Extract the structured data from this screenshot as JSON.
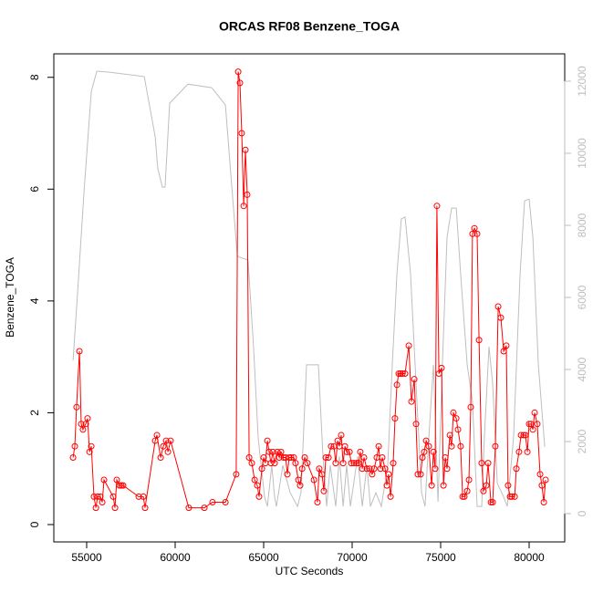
{
  "chart_data": {
    "type": "line",
    "title": "ORCAS RF08 Benzene_TOGA",
    "x_label": "UTC Seconds",
    "y_label": "Benzene_TOGA",
    "xlim": [
      53144,
      82010
    ],
    "xticks": [
      55000,
      60000,
      65000,
      70000,
      75000,
      80000
    ],
    "ylim": [
      -0.31,
      8.42
    ],
    "yticks": [
      0,
      2,
      4,
      6,
      8
    ],
    "y2lim": [
      -785,
      12760
    ],
    "y2ticks": [
      0,
      2000,
      4000,
      6000,
      8000,
      10000,
      12000
    ],
    "series": [
      {
        "color": "#ff0000",
        "markers": true,
        "x": [
          54230,
          54330,
          54430,
          54590,
          54690,
          54790,
          54950,
          55050,
          55160,
          55260,
          55410,
          55520,
          55620,
          55770,
          55880,
          55980,
          56500,
          56600,
          56700,
          56860,
          56960,
          57060,
          57940,
          58200,
          58300,
          58870,
          58970,
          59180,
          59330,
          59490,
          59590,
          59740,
          60770,
          61650,
          62110,
          62840,
          63450,
          63560,
          63660,
          63760,
          63870,
          63970,
          64070,
          64180,
          64330,
          64490,
          64640,
          64740,
          64900,
          65000,
          65100,
          65210,
          65310,
          65410,
          65520,
          65620,
          65770,
          65880,
          65980,
          66130,
          66240,
          66340,
          66440,
          66550,
          66700,
          66800,
          66960,
          67060,
          67170,
          67320,
          67470,
          67840,
          68040,
          68140,
          68300,
          68400,
          68510,
          68660,
          68810,
          68970,
          69070,
          69180,
          69280,
          69380,
          69490,
          69590,
          69690,
          69850,
          69950,
          70100,
          70260,
          70360,
          70460,
          70570,
          70670,
          70830,
          70980,
          71130,
          71240,
          71390,
          71500,
          71600,
          71700,
          71860,
          71960,
          72060,
          72170,
          72320,
          72420,
          72530,
          72630,
          72730,
          72840,
          72990,
          73200,
          73350,
          73510,
          73610,
          73710,
          73870,
          73970,
          74070,
          74180,
          74330,
          74490,
          74590,
          74690,
          74790,
          74900,
          75050,
          75160,
          75260,
          75360,
          75520,
          75620,
          75720,
          75880,
          75980,
          76130,
          76240,
          76340,
          76500,
          76600,
          76700,
          76800,
          76910,
          77060,
          77170,
          77320,
          77420,
          77580,
          77680,
          77840,
          77940,
          78090,
          78250,
          78400,
          78560,
          78710,
          78810,
          78920,
          79020,
          79180,
          79280,
          79430,
          79540,
          79690,
          79790,
          79900,
          80000,
          80100,
          80210,
          80310,
          80460,
          80620,
          80720,
          80830,
          80930
        ],
        "values": [
          1.2,
          1.4,
          2.1,
          3.1,
          1.8,
          1.7,
          1.8,
          1.9,
          1.3,
          1.4,
          0.5,
          0.3,
          0.5,
          0.5,
          0.4,
          0.8,
          0.5,
          0.3,
          0.8,
          0.7,
          0.7,
          0.7,
          0.5,
          0.5,
          0.3,
          1.5,
          1.6,
          1.2,
          1.4,
          1.5,
          1.3,
          1.5,
          0.3,
          0.3,
          0.4,
          0.4,
          0.9,
          8.1,
          7.9,
          7.0,
          5.7,
          6.7,
          5.9,
          1.2,
          1.1,
          0.8,
          0.7,
          0.5,
          1.0,
          1.2,
          1.1,
          1.5,
          1.3,
          1.1,
          1.3,
          1.1,
          1.3,
          1.2,
          1.3,
          1.2,
          1.2,
          0.9,
          1.2,
          1.2,
          1.2,
          1.1,
          0.8,
          0.7,
          1.0,
          1.2,
          1.1,
          0.8,
          0.4,
          1.0,
          0.9,
          0.6,
          1.2,
          1.2,
          1.4,
          1.4,
          1.1,
          1.5,
          1.4,
          1.6,
          1.1,
          1.4,
          1.3,
          1.3,
          1.1,
          1.1,
          1.1,
          1.1,
          1.3,
          1.0,
          1.2,
          1.0,
          1.0,
          0.9,
          1.0,
          1.2,
          1.4,
          1.0,
          1.2,
          1.0,
          0.7,
          0.9,
          0.5,
          1.1,
          1.9,
          2.5,
          2.7,
          2.7,
          2.7,
          2.7,
          3.2,
          2.2,
          2.6,
          1.8,
          0.9,
          0.9,
          1.2,
          1.3,
          1.5,
          1.4,
          0.7,
          1.3,
          1.0,
          5.7,
          2.7,
          2.8,
          0.7,
          1.2,
          1.0,
          1.6,
          1.4,
          2.0,
          1.9,
          1.7,
          1.4,
          0.5,
          0.5,
          0.6,
          0.8,
          2.1,
          5.2,
          5.3,
          5.2,
          3.3,
          1.1,
          0.6,
          0.7,
          1.1,
          0.4,
          0.4,
          1.4,
          3.9,
          3.7,
          3.1,
          3.2,
          0.7,
          0.5,
          0.5,
          0.5,
          1.0,
          1.3,
          1.6,
          1.6,
          1.6,
          1.3,
          1.8,
          1.8,
          1.7,
          2.0,
          1.8,
          0.9,
          0.7,
          0.4,
          0.8
        ]
      },
      {
        "color": "#bebebe",
        "axis": "y2",
        "markers": false,
        "x": [
          54230,
          54490,
          54850,
          55260,
          55570,
          56290,
          58250,
          58870,
          59020,
          59280,
          59430,
          59690,
          60720,
          62060,
          62840,
          63200,
          63510,
          63660,
          64120,
          64430,
          64690,
          65050,
          65210,
          65460,
          65620,
          65720,
          66080,
          66500,
          66910,
          67110,
          67420,
          67630,
          68090,
          68350,
          68560,
          68760,
          69070,
          69280,
          69490,
          69690,
          69900,
          70310,
          70570,
          70830,
          71030,
          71340,
          71650,
          72010,
          72270,
          72530,
          72780,
          72990,
          73300,
          73610,
          73920,
          74120,
          74330,
          74590,
          74850,
          75100,
          75360,
          75620,
          75880,
          76130,
          76500,
          76800,
          77060,
          77320,
          77470,
          77730,
          77940,
          78200,
          78560,
          78760,
          79120,
          79490,
          79740,
          80000,
          80210,
          80520,
          80880
        ],
        "values": [
          4250,
          6150,
          8940,
          11720,
          12280,
          12250,
          12130,
          10460,
          9570,
          9060,
          9060,
          11390,
          11920,
          11820,
          11340,
          9060,
          7160,
          7110,
          7040,
          4630,
          2100,
          460,
          200,
          1340,
          460,
          200,
          1340,
          580,
          200,
          580,
          4130,
          4130,
          4130,
          1590,
          200,
          1340,
          200,
          1590,
          200,
          1340,
          200,
          1590,
          200,
          1340,
          200,
          580,
          200,
          1340,
          4130,
          6660,
          8180,
          8230,
          6660,
          3620,
          580,
          200,
          2100,
          4130,
          330,
          4130,
          7670,
          8480,
          8480,
          6660,
          4130,
          3110,
          200,
          200,
          2100,
          4630,
          3620,
          840,
          460,
          200,
          2100,
          6660,
          8680,
          8730,
          7670,
          4130,
          1850
        ]
      }
    ]
  }
}
